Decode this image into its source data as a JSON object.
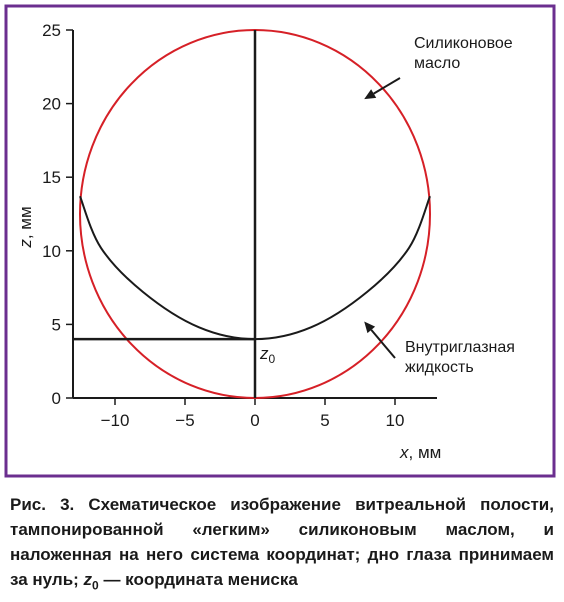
{
  "frame_color": "#6b2f8f",
  "chart_data": {
    "type": "line",
    "xlabel": "x, мм",
    "ylabel": "z, мм",
    "xlim": [
      -13,
      13
    ],
    "ylim": [
      0,
      25
    ],
    "x_ticks": [
      -10,
      -5,
      0,
      5,
      10
    ],
    "x_tick_labels": [
      "−10",
      "−5",
      "0",
      "5",
      "10"
    ],
    "y_ticks": [
      0,
      5,
      10,
      15,
      20,
      25
    ],
    "y_tick_labels": [
      "0",
      "5",
      "10",
      "15",
      "20",
      "25"
    ],
    "grid": false,
    "series": [
      {
        "color": "#d62027",
        "shape": "circle",
        "center": [
          0,
          12.5
        ],
        "radius": 12.5
      },
      {
        "color": "#1a1a1a",
        "shape": "meniscus",
        "points": [
          [
            -12.5,
            13.7
          ],
          [
            -11,
            10.2
          ],
          [
            -8,
            7.2
          ],
          [
            -4,
            4.8
          ],
          [
            0,
            4
          ],
          [
            4,
            4.8
          ],
          [
            8,
            7.2
          ],
          [
            11,
            10.2
          ],
          [
            12.5,
            13.7
          ]
        ]
      }
    ],
    "vertical_line": {
      "x": 0,
      "from": 0,
      "to": 25
    },
    "meniscus_level": {
      "z": 4,
      "label": "z0"
    },
    "annotations": [
      {
        "lines": [
          "Силиконовое",
          "масло"
        ],
        "arrow_to": [
          7.8,
          20.3
        ]
      },
      {
        "lines": [
          "Внутриглазная",
          "жидкость"
        ],
        "arrow_to": [
          7.8,
          5.2
        ]
      }
    ]
  },
  "caption": {
    "prefix": "Рис. 3.",
    "text": " Схематическое изображение витреальной полости, тампонированной «легким» силиконовым маслом, и наложенная на него система координат; дно глаза принимаем за нуль; ",
    "z_symbol": "z",
    "z_sub": "0",
    "suffix": " — координата мениска"
  }
}
